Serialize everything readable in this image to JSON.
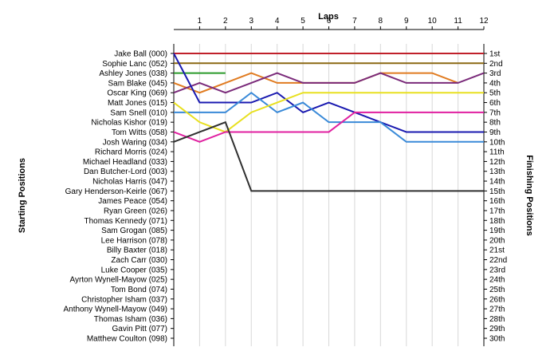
{
  "chart_data": {
    "type": "line",
    "title": "",
    "x_axis_title": "Laps",
    "y_left_title": "Starting Positions",
    "y_right_title": "Finishing Positions",
    "laps": [
      1,
      2,
      3,
      4,
      5,
      6,
      7,
      8,
      9,
      10,
      11,
      12
    ],
    "y_range": [
      1,
      30
    ],
    "grid": true,
    "drivers": [
      "Jake Ball (000)",
      "Sophie Lanc (052)",
      "Ashley Jones (038)",
      "Sam Blake (045)",
      "Oscar King (069)",
      "Matt Jones (015)",
      "Sam Snell (010)",
      "Nicholas Kishor (019)",
      "Tom Witts (058)",
      "Josh Waring (034)",
      "Richard Morris (024)",
      "Michael Headland (033)",
      "Dan Butcher-Lord (003)",
      "Nicholas Harris (047)",
      "Gary Henderson-Keirle (067)",
      "James Peace (054)",
      "Ryan Green (026)",
      "Thomas Kennedy (071)",
      "Sam Grogan (085)",
      "Lee Harrison (078)",
      "Billy Baxter (018)",
      "Zach Carr (030)",
      "Luke Cooper (035)",
      "Ayrton Wynell-Mayow (025)",
      "Tom Bond (074)",
      "Christopher Isham (037)",
      "Anthony Wynell-Mayow (049)",
      "Thomas Isham (036)",
      "Gavin Pitt (077)",
      "Matthew Coulton (098)"
    ],
    "finishing_labels": [
      "1st",
      "2nd",
      "3rd",
      "4th",
      "5th",
      "6th",
      "7th",
      "8th",
      "9th",
      "10th",
      "11th",
      "12th",
      "13th",
      "14th",
      "15th",
      "16th",
      "17th",
      "18th",
      "19th",
      "20th",
      "21st",
      "22nd",
      "23rd",
      "24th",
      "25th",
      "26th",
      "27th",
      "28th",
      "29th",
      "30th"
    ],
    "series": [
      {
        "color": "#c0202a",
        "positions": [
          1,
          1,
          1,
          1,
          1,
          1,
          1,
          1,
          1,
          1,
          1,
          1,
          1
        ]
      },
      {
        "color": "#8b6914",
        "positions": [
          2,
          2,
          2,
          2,
          2,
          2,
          2,
          2,
          2,
          2,
          2,
          2,
          2
        ]
      },
      {
        "color": "#2a9a2a",
        "positions": [
          3,
          3,
          3
        ]
      },
      {
        "color": "#e07b20",
        "positions": [
          4,
          5,
          4,
          3,
          4,
          4,
          4,
          4,
          3,
          3,
          3,
          4
        ]
      },
      {
        "color": "#7a2a7a",
        "positions": [
          5,
          4,
          5,
          4,
          3,
          4,
          4,
          4,
          3,
          4,
          4,
          4,
          3
        ]
      },
      {
        "color": "#1a1ab0",
        "positions": [
          1,
          6,
          6,
          6,
          5,
          7,
          6,
          7,
          8,
          9,
          9,
          9,
          9
        ]
      },
      {
        "color": "#3a8ad8",
        "positions": [
          7,
          7,
          7,
          5,
          7,
          6,
          8,
          8,
          8,
          10,
          10,
          10,
          10
        ]
      },
      {
        "color": "#e8e020",
        "positions": [
          6,
          8,
          9,
          7,
          6,
          5,
          5,
          5,
          5,
          5,
          5,
          5,
          5
        ]
      },
      {
        "color": "#e020a0",
        "positions": [
          9,
          10,
          9,
          9,
          9,
          9,
          9,
          7,
          7,
          7,
          7,
          7,
          7
        ]
      },
      {
        "color": "#303030",
        "positions": [
          10,
          9,
          8,
          15,
          15,
          15,
          15,
          15,
          15,
          15,
          15,
          15,
          15
        ]
      }
    ]
  }
}
